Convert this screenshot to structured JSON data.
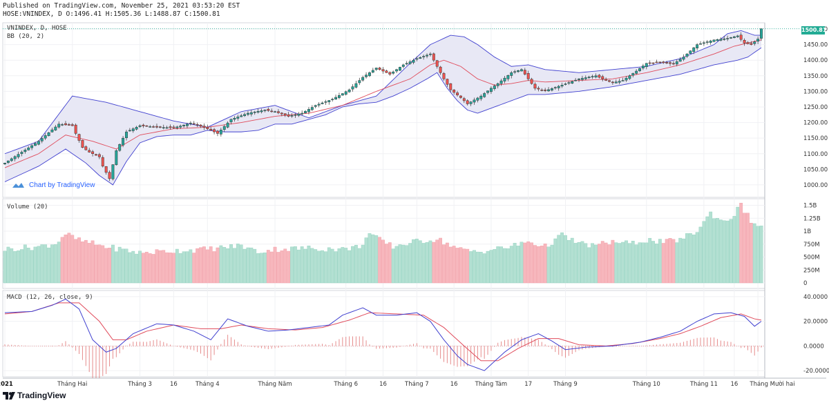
{
  "header": {
    "published": "Published on TradingView.com, November 25, 2021 03:53:20 EST",
    "ohlc": "HOSE:VNINDEX, D O:1496.41 H:1505.36 L:1488.87 C:1500.81"
  },
  "watermark": "Chart by TradingView",
  "footer_brand": "TradingView",
  "last_price_label": "1500.81",
  "colors": {
    "up": "#26a69a",
    "down": "#ef5350",
    "band": "#3f3fcf",
    "basis": "#e04a5a",
    "bandfill": "#e8e8f5"
  },
  "chart_data": [
    {
      "type": "candlestick",
      "title": "VNINDEX, D, HOSE",
      "indicator_label": "BB (20, 2)",
      "ylim": [
        960,
        1520
      ],
      "y_ticks": [
        "1000.00",
        "1050.00",
        "1100.00",
        "1150.00",
        "1200.00",
        "1250.00",
        "1300.00",
        "1350.00",
        "1400.00",
        "1450.00",
        "1500.00"
      ],
      "last_close": 1500.81,
      "x_labels": [
        "2021",
        "Tháng Hai",
        "Tháng 3",
        "16",
        "Tháng 4",
        "Tháng Năm",
        "Tháng 6",
        "16",
        "Tháng 7",
        "16",
        "Tháng Tám",
        "17",
        "Tháng 9",
        "Tháng 10",
        "Tháng 11",
        "16",
        "Tháng Mười hai"
      ],
      "close_anchors": [
        [
          0,
          1070
        ],
        [
          10,
          1140
        ],
        [
          16,
          1195
        ],
        [
          20,
          1190
        ],
        [
          21,
          1165
        ],
        [
          23,
          1120
        ],
        [
          25,
          1105
        ],
        [
          28,
          1090
        ],
        [
          29,
          1060
        ],
        [
          31,
          1020
        ],
        [
          33,
          1110
        ],
        [
          36,
          1170
        ],
        [
          40,
          1190
        ],
        [
          45,
          1185
        ],
        [
          50,
          1183
        ],
        [
          55,
          1198
        ],
        [
          59,
          1185
        ],
        [
          63,
          1165
        ],
        [
          67,
          1210
        ],
        [
          72,
          1230
        ],
        [
          77,
          1240
        ],
        [
          80,
          1235
        ],
        [
          84,
          1220
        ],
        [
          88,
          1230
        ],
        [
          92,
          1255
        ],
        [
          97,
          1275
        ],
        [
          102,
          1305
        ],
        [
          106,
          1345
        ],
        [
          110,
          1375
        ],
        [
          114,
          1355
        ],
        [
          118,
          1385
        ],
        [
          122,
          1405
        ],
        [
          126,
          1420
        ],
        [
          128,
          1380
        ],
        [
          130,
          1340
        ],
        [
          132,
          1305
        ],
        [
          135,
          1280
        ],
        [
          137,
          1260
        ],
        [
          141,
          1285
        ],
        [
          144,
          1310
        ],
        [
          146,
          1325
        ],
        [
          150,
          1360
        ],
        [
          153,
          1370
        ],
        [
          155,
          1340
        ],
        [
          157,
          1310
        ],
        [
          160,
          1302
        ],
        [
          165,
          1320
        ],
        [
          170,
          1340
        ],
        [
          175,
          1350
        ],
        [
          178,
          1335
        ],
        [
          180,
          1328
        ],
        [
          183,
          1335
        ],
        [
          187,
          1365
        ],
        [
          190,
          1390
        ],
        [
          194,
          1393
        ],
        [
          198,
          1388
        ],
        [
          201,
          1410
        ],
        [
          205,
          1450
        ],
        [
          210,
          1465
        ],
        [
          214,
          1470
        ],
        [
          217,
          1478
        ],
        [
          219,
          1455
        ],
        [
          221,
          1450
        ],
        [
          223,
          1468
        ],
        [
          224,
          1500.81
        ]
      ],
      "bb_upper_anchors": [
        [
          0,
          1100
        ],
        [
          10,
          1140
        ],
        [
          20,
          1285
        ],
        [
          30,
          1265
        ],
        [
          40,
          1235
        ],
        [
          50,
          1205
        ],
        [
          60,
          1185
        ],
        [
          70,
          1235
        ],
        [
          80,
          1255
        ],
        [
          90,
          1215
        ],
        [
          100,
          1255
        ],
        [
          110,
          1285
        ],
        [
          120,
          1390
        ],
        [
          126,
          1450
        ],
        [
          132,
          1480
        ],
        [
          136,
          1475
        ],
        [
          140,
          1450
        ],
        [
          145,
          1410
        ],
        [
          150,
          1380
        ],
        [
          155,
          1385
        ],
        [
          160,
          1370
        ],
        [
          170,
          1360
        ],
        [
          180,
          1370
        ],
        [
          190,
          1380
        ],
        [
          200,
          1405
        ],
        [
          210,
          1450
        ],
        [
          214,
          1485
        ],
        [
          218,
          1495
        ],
        [
          222,
          1480
        ],
        [
          224,
          1480
        ]
      ],
      "bb_lower_anchors": [
        [
          0,
          1010
        ],
        [
          10,
          1060
        ],
        [
          18,
          1115
        ],
        [
          24,
          1070
        ],
        [
          28,
          1030
        ],
        [
          32,
          1000
        ],
        [
          36,
          1075
        ],
        [
          40,
          1135
        ],
        [
          45,
          1155
        ],
        [
          50,
          1160
        ],
        [
          55,
          1160
        ],
        [
          60,
          1175
        ],
        [
          65,
          1170
        ],
        [
          70,
          1170
        ],
        [
          75,
          1175
        ],
        [
          80,
          1195
        ],
        [
          85,
          1195
        ],
        [
          90,
          1210
        ],
        [
          95,
          1225
        ],
        [
          100,
          1250
        ],
        [
          105,
          1260
        ],
        [
          110,
          1265
        ],
        [
          115,
          1285
        ],
        [
          120,
          1310
        ],
        [
          125,
          1340
        ],
        [
          128,
          1360
        ],
        [
          131,
          1310
        ],
        [
          134,
          1270
        ],
        [
          137,
          1240
        ],
        [
          140,
          1230
        ],
        [
          145,
          1250
        ],
        [
          150,
          1270
        ],
        [
          155,
          1290
        ],
        [
          160,
          1290
        ],
        [
          170,
          1300
        ],
        [
          180,
          1315
        ],
        [
          190,
          1335
        ],
        [
          200,
          1355
        ],
        [
          210,
          1385
        ],
        [
          217,
          1400
        ],
        [
          220,
          1410
        ],
        [
          224,
          1440
        ]
      ],
      "bb_basis_anchors": [
        [
          0,
          1055
        ],
        [
          10,
          1100
        ],
        [
          18,
          1160
        ],
        [
          26,
          1140
        ],
        [
          33,
          1115
        ],
        [
          40,
          1160
        ],
        [
          50,
          1180
        ],
        [
          60,
          1185
        ],
        [
          70,
          1200
        ],
        [
          80,
          1220
        ],
        [
          90,
          1230
        ],
        [
          100,
          1255
        ],
        [
          110,
          1300
        ],
        [
          120,
          1340
        ],
        [
          126,
          1385
        ],
        [
          130,
          1400
        ],
        [
          135,
          1380
        ],
        [
          140,
          1340
        ],
        [
          145,
          1320
        ],
        [
          150,
          1325
        ],
        [
          155,
          1335
        ],
        [
          160,
          1330
        ],
        [
          170,
          1335
        ],
        [
          180,
          1340
        ],
        [
          190,
          1360
        ],
        [
          200,
          1385
        ],
        [
          210,
          1420
        ],
        [
          216,
          1445
        ],
        [
          220,
          1455
        ],
        [
          224,
          1465
        ]
      ]
    },
    {
      "type": "bar",
      "title": "Volume (20)",
      "ylim": [
        0,
        1600000000
      ],
      "y_ticks": [
        "0",
        "250M",
        "500M",
        "750M",
        "1B",
        "1.25B",
        "1.5B"
      ],
      "anchors": [
        [
          0,
          650
        ],
        [
          10,
          700
        ],
        [
          15,
          760
        ],
        [
          18,
          950
        ],
        [
          22,
          820
        ],
        [
          30,
          700
        ],
        [
          40,
          580
        ],
        [
          50,
          620
        ],
        [
          60,
          650
        ],
        [
          70,
          720
        ],
        [
          75,
          600
        ],
        [
          80,
          650
        ],
        [
          90,
          670
        ],
        [
          100,
          650
        ],
        [
          105,
          700
        ],
        [
          108,
          950
        ],
        [
          111,
          830
        ],
        [
          115,
          700
        ],
        [
          120,
          780
        ],
        [
          128,
          850
        ],
        [
          135,
          640
        ],
        [
          140,
          600
        ],
        [
          150,
          700
        ],
        [
          155,
          800
        ],
        [
          160,
          700
        ],
        [
          165,
          920
        ],
        [
          170,
          760
        ],
        [
          175,
          720
        ],
        [
          180,
          800
        ],
        [
          185,
          750
        ],
        [
          190,
          830
        ],
        [
          195,
          780
        ],
        [
          200,
          840
        ],
        [
          205,
          1000
        ],
        [
          209,
          1350
        ],
        [
          212,
          1200
        ],
        [
          215,
          1250
        ],
        [
          218,
          1500
        ],
        [
          221,
          1200
        ],
        [
          224,
          1050
        ]
      ]
    },
    {
      "type": "line",
      "title": "MACD (12, 26, close, 9)",
      "ylim": [
        -25,
        45
      ],
      "y_ticks": [
        "40.0000",
        "20.0000",
        "0.0000",
        "-20.0000"
      ],
      "macd_anchors": [
        [
          0,
          27
        ],
        [
          8,
          28
        ],
        [
          14,
          33
        ],
        [
          18,
          38
        ],
        [
          22,
          30
        ],
        [
          26,
          5
        ],
        [
          30,
          -5
        ],
        [
          33,
          -2
        ],
        [
          38,
          10
        ],
        [
          45,
          18
        ],
        [
          50,
          17
        ],
        [
          56,
          12
        ],
        [
          61,
          5
        ],
        [
          66,
          22
        ],
        [
          72,
          16
        ],
        [
          78,
          12
        ],
        [
          84,
          13
        ],
        [
          90,
          15
        ],
        [
          96,
          17
        ],
        [
          100,
          25
        ],
        [
          106,
          31
        ],
        [
          110,
          25
        ],
        [
          116,
          25
        ],
        [
          122,
          27
        ],
        [
          126,
          20
        ],
        [
          130,
          5
        ],
        [
          134,
          -8
        ],
        [
          137,
          -15
        ],
        [
          140,
          -18
        ],
        [
          142,
          -20
        ],
        [
          148,
          -5
        ],
        [
          153,
          5
        ],
        [
          158,
          10
        ],
        [
          162,
          4
        ],
        [
          166,
          -3
        ],
        [
          172,
          -1
        ],
        [
          180,
          0
        ],
        [
          188,
          3
        ],
        [
          194,
          7
        ],
        [
          200,
          12
        ],
        [
          205,
          20
        ],
        [
          210,
          26
        ],
        [
          215,
          27
        ],
        [
          219,
          24
        ],
        [
          222,
          16
        ],
        [
          224,
          20
        ]
      ],
      "signal_anchors": [
        [
          0,
          26
        ],
        [
          8,
          28
        ],
        [
          16,
          35
        ],
        [
          22,
          35
        ],
        [
          28,
          20
        ],
        [
          32,
          5
        ],
        [
          36,
          5
        ],
        [
          42,
          12
        ],
        [
          50,
          17
        ],
        [
          58,
          14
        ],
        [
          64,
          14
        ],
        [
          70,
          17
        ],
        [
          78,
          14
        ],
        [
          86,
          13
        ],
        [
          94,
          15
        ],
        [
          102,
          21
        ],
        [
          108,
          27
        ],
        [
          116,
          26
        ],
        [
          124,
          25
        ],
        [
          130,
          15
        ],
        [
          136,
          0
        ],
        [
          141,
          -12
        ],
        [
          146,
          -12
        ],
        [
          152,
          -2
        ],
        [
          158,
          6
        ],
        [
          164,
          6
        ],
        [
          170,
          1
        ],
        [
          178,
          0
        ],
        [
          186,
          2
        ],
        [
          194,
          6
        ],
        [
          200,
          10
        ],
        [
          206,
          16
        ],
        [
          212,
          23
        ],
        [
          218,
          26
        ],
        [
          222,
          22
        ],
        [
          224,
          21
        ]
      ],
      "histogram_note": "histogram = MACD - Signal"
    }
  ]
}
